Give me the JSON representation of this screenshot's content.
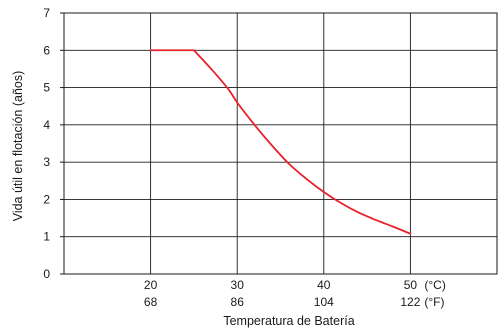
{
  "chart_data": {
    "type": "line",
    "xlabel": "Temperatura de Batería",
    "ylabel": "Vida útil en flotación (años)",
    "xlim": [
      10,
      60
    ],
    "ylim": [
      0,
      7
    ],
    "x_ticks": [
      20,
      30,
      40,
      50
    ],
    "x_ticks_f": [
      "68",
      "86",
      "104",
      "122"
    ],
    "x_unit_c": "(°C)",
    "x_unit_f": "(°F)",
    "y_ticks": [
      0,
      1,
      2,
      3,
      4,
      5,
      6,
      7
    ],
    "grid": true,
    "series": [
      {
        "color": "#e8212b",
        "x": [
          20,
          25,
          27,
          29,
          30,
          32,
          34,
          36,
          38,
          40,
          42,
          44,
          46,
          48,
          50
        ],
        "y": [
          6.0,
          6.0,
          5.5,
          4.95,
          4.6,
          4.0,
          3.45,
          2.95,
          2.55,
          2.2,
          1.9,
          1.65,
          1.45,
          1.27,
          1.08
        ]
      }
    ]
  }
}
